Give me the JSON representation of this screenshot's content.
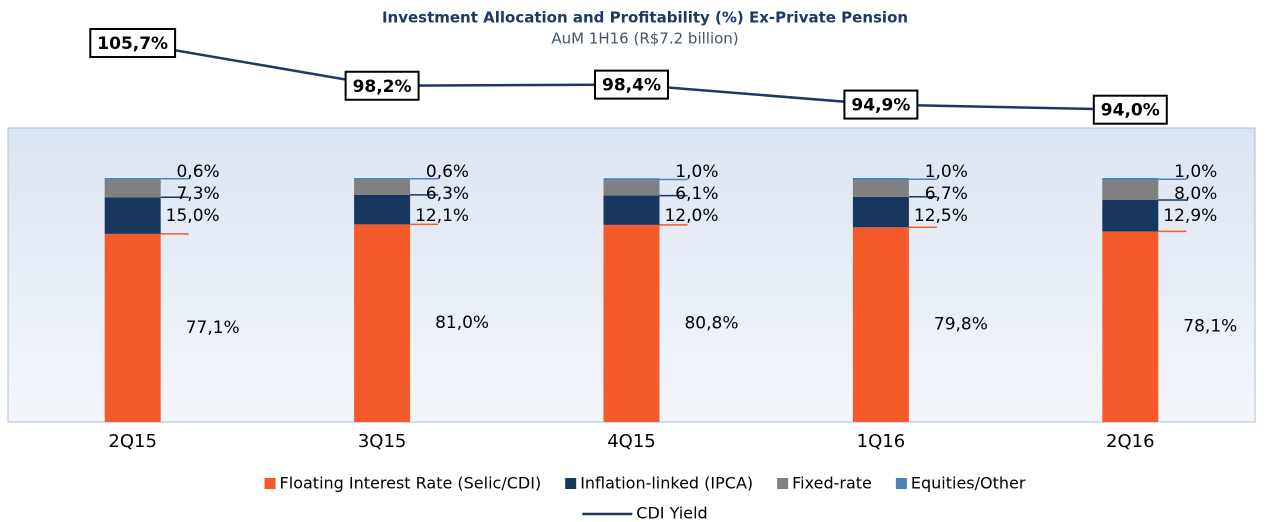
{
  "chart_data": {
    "type": "bar",
    "stacked": true,
    "title": "Investment Allocation and Profitability (%) Ex-Private Pension",
    "subtitle": "AuM 1H16 (R$7.2 billion)",
    "categories": [
      "2Q15",
      "3Q15",
      "4Q15",
      "1Q16",
      "2Q16"
    ],
    "ylim": [
      0,
      100
    ],
    "y2lim": [
      90,
      110
    ],
    "series": [
      {
        "name": "Floating Interest Rate (Selic/CDI)",
        "color": "#f55a2a",
        "values": [
          77.1,
          81.0,
          80.8,
          79.8,
          78.1
        ],
        "value_labels": [
          "77,1%",
          "81,0%",
          "80,8%",
          "79,8%",
          "78,1%"
        ]
      },
      {
        "name": "Inflation-linked (IPCA)",
        "color": "#17375e",
        "values": [
          15.0,
          12.1,
          12.0,
          12.5,
          12.9
        ],
        "value_labels": [
          "15,0%",
          "12,1%",
          "12,0%",
          "12,5%",
          "12,9%"
        ]
      },
      {
        "name": "Fixed-rate",
        "color": "#808080",
        "values": [
          7.3,
          6.3,
          6.1,
          6.7,
          8.0
        ],
        "value_labels": [
          "7,3%",
          "6,3%",
          "6,1%",
          "6,7%",
          "8,0%"
        ]
      },
      {
        "name": "Equities/Other",
        "color": "#4f81bd",
        "values": [
          0.6,
          0.6,
          1.0,
          1.0,
          1.0
        ],
        "value_labels": [
          "0,6%",
          "0,6%",
          "1,0%",
          "1,0%",
          "1,0%"
        ]
      },
      {
        "name": "CDI Yield",
        "type": "line",
        "axis": "y2",
        "color": "#1f3864",
        "values": [
          105.7,
          98.2,
          98.4,
          94.9,
          94.0
        ],
        "value_labels": [
          "105,7%",
          "98,2%",
          "98,4%",
          "94,9%",
          "94,0%"
        ]
      }
    ]
  }
}
